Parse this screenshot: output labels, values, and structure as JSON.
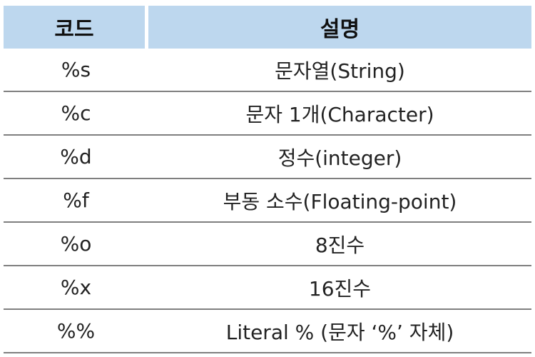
{
  "table": {
    "headers": {
      "code": "코드",
      "description": "설명"
    },
    "rows": [
      {
        "code": "%s",
        "description": "문자열(String)"
      },
      {
        "code": "%c",
        "description": "문자 1개(Character)"
      },
      {
        "code": "%d",
        "description": "정수(integer)"
      },
      {
        "code": "%f",
        "description": "부동 소수(Floating-point)"
      },
      {
        "code": "%o",
        "description": "8진수"
      },
      {
        "code": "%x",
        "description": "16진수"
      },
      {
        "code": "%%",
        "description": "Literal % (문자 ‘%’ 자체)"
      }
    ]
  },
  "colors": {
    "header_background": "#bdd7ee",
    "row_divider": "#7f7f7f"
  }
}
